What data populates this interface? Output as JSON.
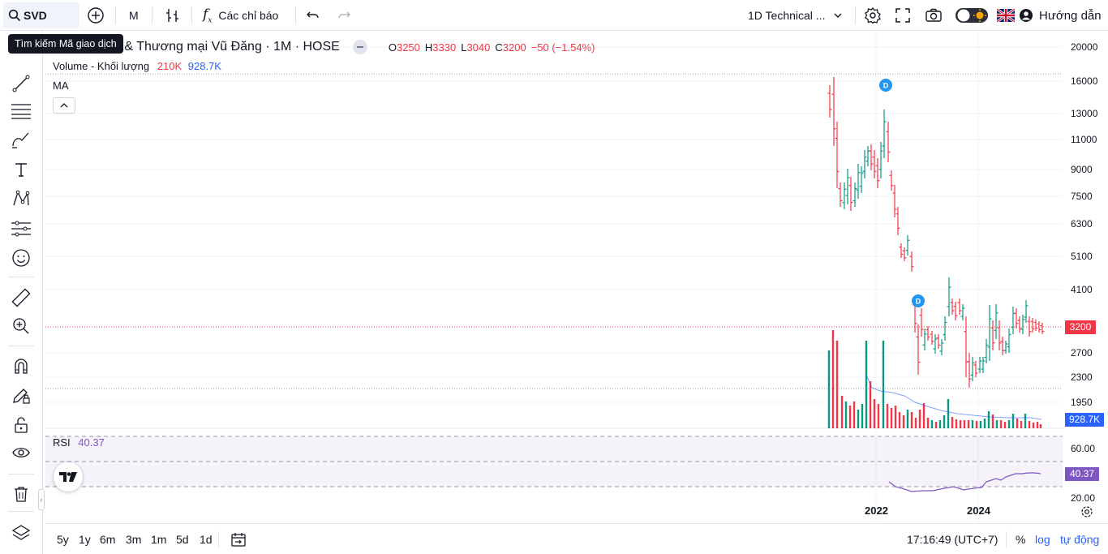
{
  "topbar": {
    "symbol": "SVD",
    "interval": "M",
    "indicators_label": "Các chỉ báo",
    "layout_name": "1D Technical ...",
    "guide_label": "Hướng dẫn",
    "tooltip": "Tìm kiếm Mã giao dịch"
  },
  "legend": {
    "title": "Đầu tư & Thương mại Vũ Đăng · 1M · HOSE",
    "open_key": "O",
    "open": "3250",
    "high_key": "H",
    "high": "3330",
    "low_key": "L",
    "low": "3040",
    "close_key": "C",
    "close": "3200",
    "change": "−50 (−1.54%)"
  },
  "volume_legend": {
    "label": "Volume - Khối lượng",
    "value1": "210K",
    "value2": "928.7K"
  },
  "ma_legend": {
    "label": "MA"
  },
  "rsi_legend": {
    "label": "RSI",
    "value": "40.37"
  },
  "price_axis": {
    "ticks": [
      "20000",
      "16000",
      "13000",
      "11000",
      "9000",
      "7500",
      "6300",
      "5100",
      "4100",
      "2700",
      "2300",
      "1950"
    ],
    "current_price_label": "3200",
    "volume_label": "928.7K",
    "rsi_ticks": [
      "60.00",
      "20.00"
    ],
    "rsi_label": "40.37"
  },
  "time_axis": {
    "ticks": [
      "2022",
      "2024"
    ]
  },
  "bottombar": {
    "ranges": [
      "5y",
      "1y",
      "6m",
      "3m",
      "1m",
      "5d",
      "1d"
    ],
    "clock": "17:16:49 (UTC+7)",
    "percent": "%",
    "log": "log",
    "auto": "tự động"
  },
  "colors": {
    "up": "#089981",
    "down": "#f23645",
    "accent": "#2962ff",
    "rsi": "#7e57c2"
  },
  "events": {
    "dividend_marker": "D"
  }
}
